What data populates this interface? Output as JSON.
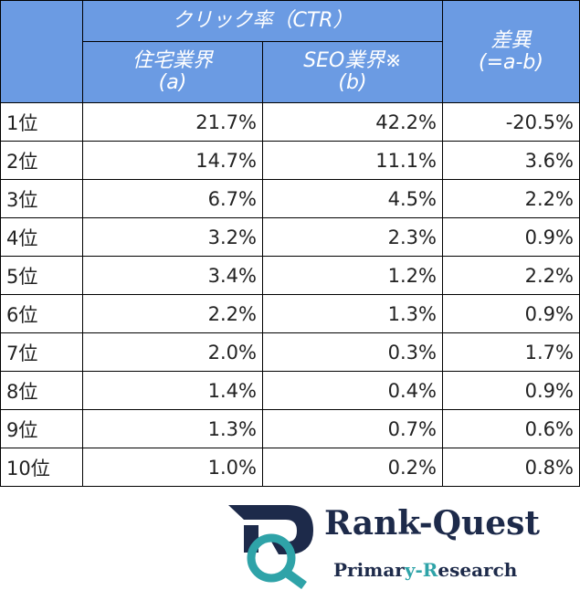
{
  "table": {
    "header": {
      "group": "クリック率（CTR）",
      "a": "住宅業界",
      "a_note": "(a)",
      "b": "SEO業界※",
      "b_note": "(b)",
      "diff": "差異",
      "diff_note": "(=a-b)"
    },
    "rows": [
      [
        "1位",
        "21.7%",
        "42.2%",
        "-20.5%"
      ],
      [
        "2位",
        "14.7%",
        "11.1%",
        "3.6%"
      ],
      [
        "3位",
        "6.7%",
        "4.5%",
        "2.2%"
      ],
      [
        "4位",
        "3.2%",
        "2.3%",
        "0.9%"
      ],
      [
        "5位",
        "3.4%",
        "1.2%",
        "2.2%"
      ],
      [
        "6位",
        "2.2%",
        "1.3%",
        "0.9%"
      ],
      [
        "7位",
        "2.0%",
        "0.3%",
        "1.7%"
      ],
      [
        "8位",
        "1.4%",
        "0.4%",
        "0.9%"
      ],
      [
        "9位",
        "1.3%",
        "0.7%",
        "0.6%"
      ],
      [
        "10位",
        "1.0%",
        "0.2%",
        "0.8%"
      ]
    ]
  },
  "logo": {
    "name": "Rank-Quest",
    "tagline_parts": [
      "Primar",
      "y-R",
      "esearch"
    ]
  }
}
